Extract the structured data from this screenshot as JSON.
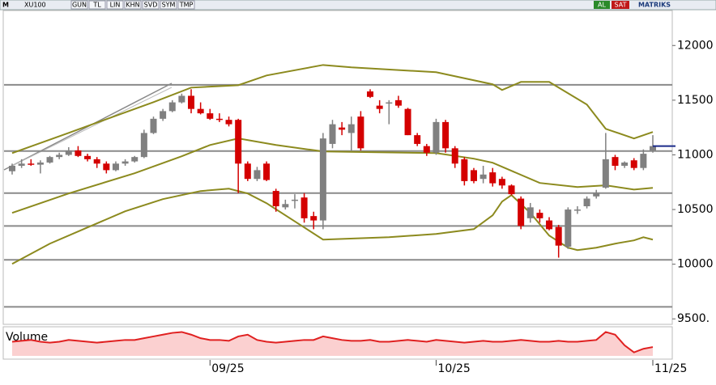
{
  "toolbar": {
    "symbol": "XU100",
    "buttons": [
      "GUN",
      "TL",
      "LIN",
      "KHN",
      "SVD",
      "SYM",
      "TMP"
    ],
    "buy": "AL",
    "sell": "SAT",
    "brand": "MATRIKS"
  },
  "chart_data": {
    "type": "candlestick",
    "categories": [
      null,
      null,
      null,
      null,
      null,
      null,
      null,
      null,
      null,
      null,
      null,
      null,
      null,
      null,
      null,
      null,
      null,
      null,
      null,
      null,
      null,
      "09/25",
      null,
      null,
      null,
      null,
      null,
      null,
      null,
      null,
      null,
      null,
      null,
      null,
      null,
      null,
      null,
      null,
      null,
      null,
      null,
      null,
      null,
      null,
      null,
      "10/25",
      null,
      null,
      null,
      null,
      null,
      null,
      null,
      null,
      null,
      null,
      null,
      null,
      null,
      null,
      null,
      null,
      null,
      null,
      null,
      null,
      null,
      null,
      "11/25"
    ],
    "open": [
      10850,
      10900,
      10920,
      10910,
      10930,
      10980,
      11000,
      11040,
      10990,
      10960,
      10920,
      10860,
      10920,
      10940,
      10980,
      11200,
      11330,
      11400,
      11480,
      11540,
      11420,
      11380,
      11330,
      11320,
      11320,
      10920,
      10780,
      10920,
      10670,
      10520,
      10590,
      10610,
      10440,
      10400,
      11100,
      11250,
      11200,
      11350,
      11580,
      11450,
      11470,
      11500,
      11420,
      11180,
      11080,
      11020,
      11300,
      11060,
      10960,
      10860,
      10780,
      10840,
      10780,
      10720,
      10600,
      10420,
      10470,
      10400,
      10340,
      10160,
      10500,
      10530,
      10620,
      10700,
      10980,
      10900,
      10950,
      10880,
      11040
    ],
    "high": [
      10920,
      10960,
      10960,
      10950,
      10990,
      11020,
      11070,
      11080,
      11010,
      10980,
      10940,
      10940,
      10960,
      10990,
      11230,
      11350,
      11420,
      11500,
      11560,
      11600,
      11480,
      11420,
      11380,
      11350,
      11330,
      10940,
      10890,
      10940,
      10690,
      10590,
      10640,
      10650,
      10480,
      11200,
      11320,
      11300,
      11350,
      11400,
      11600,
      11500,
      11500,
      11540,
      11430,
      11200,
      11100,
      11330,
      11320,
      11080,
      10980,
      10880,
      10900,
      10880,
      10800,
      10730,
      10620,
      10560,
      10500,
      10430,
      10360,
      10520,
      10530,
      10620,
      10680,
      11200,
      11000,
      10940,
      10970,
      11050,
      11180
    ],
    "low": [
      10820,
      10880,
      10900,
      10830,
      10920,
      10960,
      10990,
      10980,
      10940,
      10880,
      10830,
      10850,
      10900,
      10930,
      10970,
      11190,
      11310,
      11390,
      11470,
      11380,
      11370,
      11320,
      11300,
      11260,
      10650,
      10760,
      10760,
      10760,
      10480,
      10500,
      10510,
      10380,
      10320,
      10320,
      11060,
      11180,
      11040,
      11040,
      11520,
      11380,
      11280,
      11430,
      11180,
      11080,
      10990,
      11000,
      11020,
      10880,
      10720,
      10740,
      10740,
      10710,
      10690,
      10630,
      10320,
      10380,
      10380,
      10310,
      10060,
      10140,
      10460,
      10510,
      10600,
      10690,
      10860,
      10880,
      10860,
      10860,
      11020
    ],
    "close": [
      10900,
      10920,
      10910,
      10930,
      10980,
      11000,
      11040,
      10990,
      10960,
      10920,
      10860,
      10920,
      10940,
      10980,
      11200,
      11330,
      11400,
      11480,
      11540,
      11420,
      11380,
      11330,
      11320,
      11280,
      10920,
      10780,
      10860,
      10770,
      10530,
      10550,
      10590,
      10420,
      10400,
      11150,
      11280,
      11230,
      11280,
      11060,
      11530,
      11420,
      11480,
      11450,
      11180,
      11100,
      11020,
      11300,
      11060,
      10920,
      10760,
      10760,
      10820,
      10740,
      10720,
      10640,
      10350,
      10520,
      10420,
      10320,
      10170,
      10500,
      10500,
      10600,
      10650,
      10960,
      10900,
      10930,
      10880,
      11010,
      11080
    ],
    "up_color": "#808080",
    "down_color": "#d40000",
    "bands": [
      {
        "color": "#8c8a1e",
        "x": [
          0,
          6,
          15,
          19,
          24,
          27,
          33,
          36,
          45,
          51,
          52,
          54,
          57,
          61,
          63,
          66,
          68
        ],
        "values": [
          11016,
          11201,
          11482,
          11615,
          11637,
          11726,
          11822,
          11800,
          11756,
          11645,
          11593,
          11667,
          11667,
          11460,
          11238,
          11150,
          11209
        ]
      },
      {
        "color": "#8c8a1e",
        "x": [
          0,
          6,
          13,
          18,
          21,
          24,
          28,
          33,
          45,
          49,
          51,
          53,
          56,
          60,
          63,
          66,
          68
        ],
        "values": [
          10469,
          10647,
          10832,
          10987,
          11090,
          11150,
          11090,
          11031,
          11016,
          10965,
          10928,
          10854,
          10743,
          10706,
          10721,
          10683,
          10698
        ]
      },
      {
        "color": "#8c8a1e",
        "x": [
          0,
          4,
          8,
          12,
          16,
          20,
          23,
          25,
          27,
          31,
          33,
          40,
          45,
          49,
          51,
          52,
          53,
          55,
          57,
          59,
          60,
          62,
          64,
          66,
          67,
          68
        ],
        "values": [
          10003,
          10188,
          10336,
          10484,
          10595,
          10669,
          10691,
          10647,
          10558,
          10336,
          10225,
          10247,
          10277,
          10321,
          10447,
          10573,
          10632,
          10469,
          10262,
          10151,
          10129,
          10151,
          10188,
          10218,
          10247,
          10225
        ]
      }
    ],
    "levels": [
      11640,
      11035,
      10650,
      10350,
      10040,
      9610
    ],
    "ylim": [
      9450,
      12320
    ],
    "yticks": [
      12000,
      11500,
      11000,
      10500,
      10000,
      {
        "value": 9500,
        "label": "9500."
      }
    ],
    "volume": {
      "label": "Volume",
      "color": "#e02020",
      "ylim": [
        0,
        16
      ],
      "values": [
        8,
        8.5,
        9,
        8,
        7.5,
        8,
        9,
        8.5,
        8,
        7.5,
        8,
        8.5,
        9,
        9,
        10,
        11,
        12,
        13,
        13.5,
        12,
        10,
        9,
        9,
        8.5,
        11,
        12,
        9,
        8,
        7.5,
        8,
        8.5,
        9,
        9,
        11,
        10,
        9,
        8.5,
        8.5,
        9,
        8,
        8,
        8.5,
        9,
        8.5,
        8,
        9,
        8.5,
        8,
        7.5,
        8,
        8.5,
        8,
        8,
        8.5,
        9,
        8.5,
        8,
        8,
        8.5,
        8,
        8,
        8.5,
        9,
        13.5,
        12,
        6,
        2,
        4,
        5
      ]
    }
  }
}
